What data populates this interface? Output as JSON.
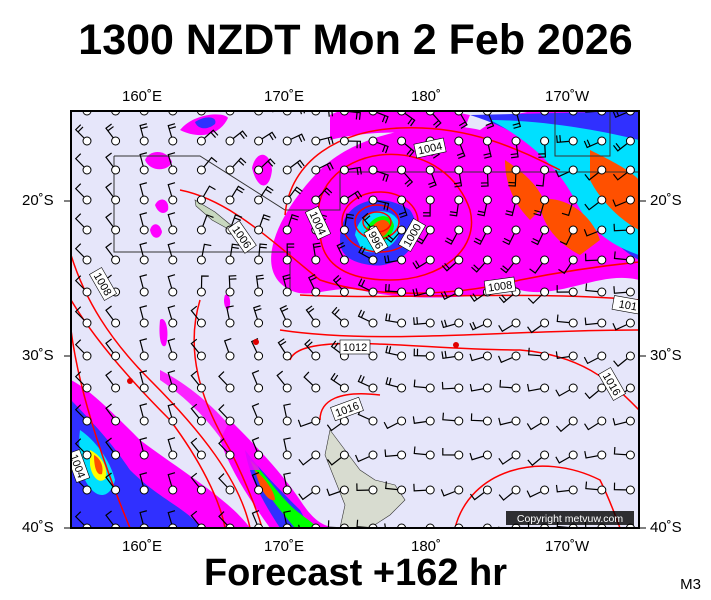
{
  "header": {
    "title": "1300 NZDT Mon 2 Feb 2026"
  },
  "footer": {
    "forecast": "Forecast +162 hr",
    "model": "M3"
  },
  "map": {
    "lon_labels": [
      "160˚E",
      "170˚E",
      "180˚",
      "170˚W"
    ],
    "lat_labels": [
      "20˚S",
      "30˚S",
      "40˚S"
    ],
    "isobar_labels": [
      "1004",
      "1004",
      "996",
      "1000",
      "1008",
      "1006",
      "1008",
      "1012",
      "1016",
      "101",
      "1016",
      "1004"
    ],
    "copyright": "Copyright metvuw.com",
    "colors": {
      "background": "#e6e6fa",
      "isobar": "#ff0000",
      "rain_light": "#ff00ff",
      "rain_moderate": "#a000ff",
      "rain_heavy": "#3030ff",
      "rain_heavier": "#00e0ff",
      "rain_strong": "#00ff00",
      "rain_very_strong": "#ffff00",
      "rain_extreme": "#ff5000"
    }
  }
}
